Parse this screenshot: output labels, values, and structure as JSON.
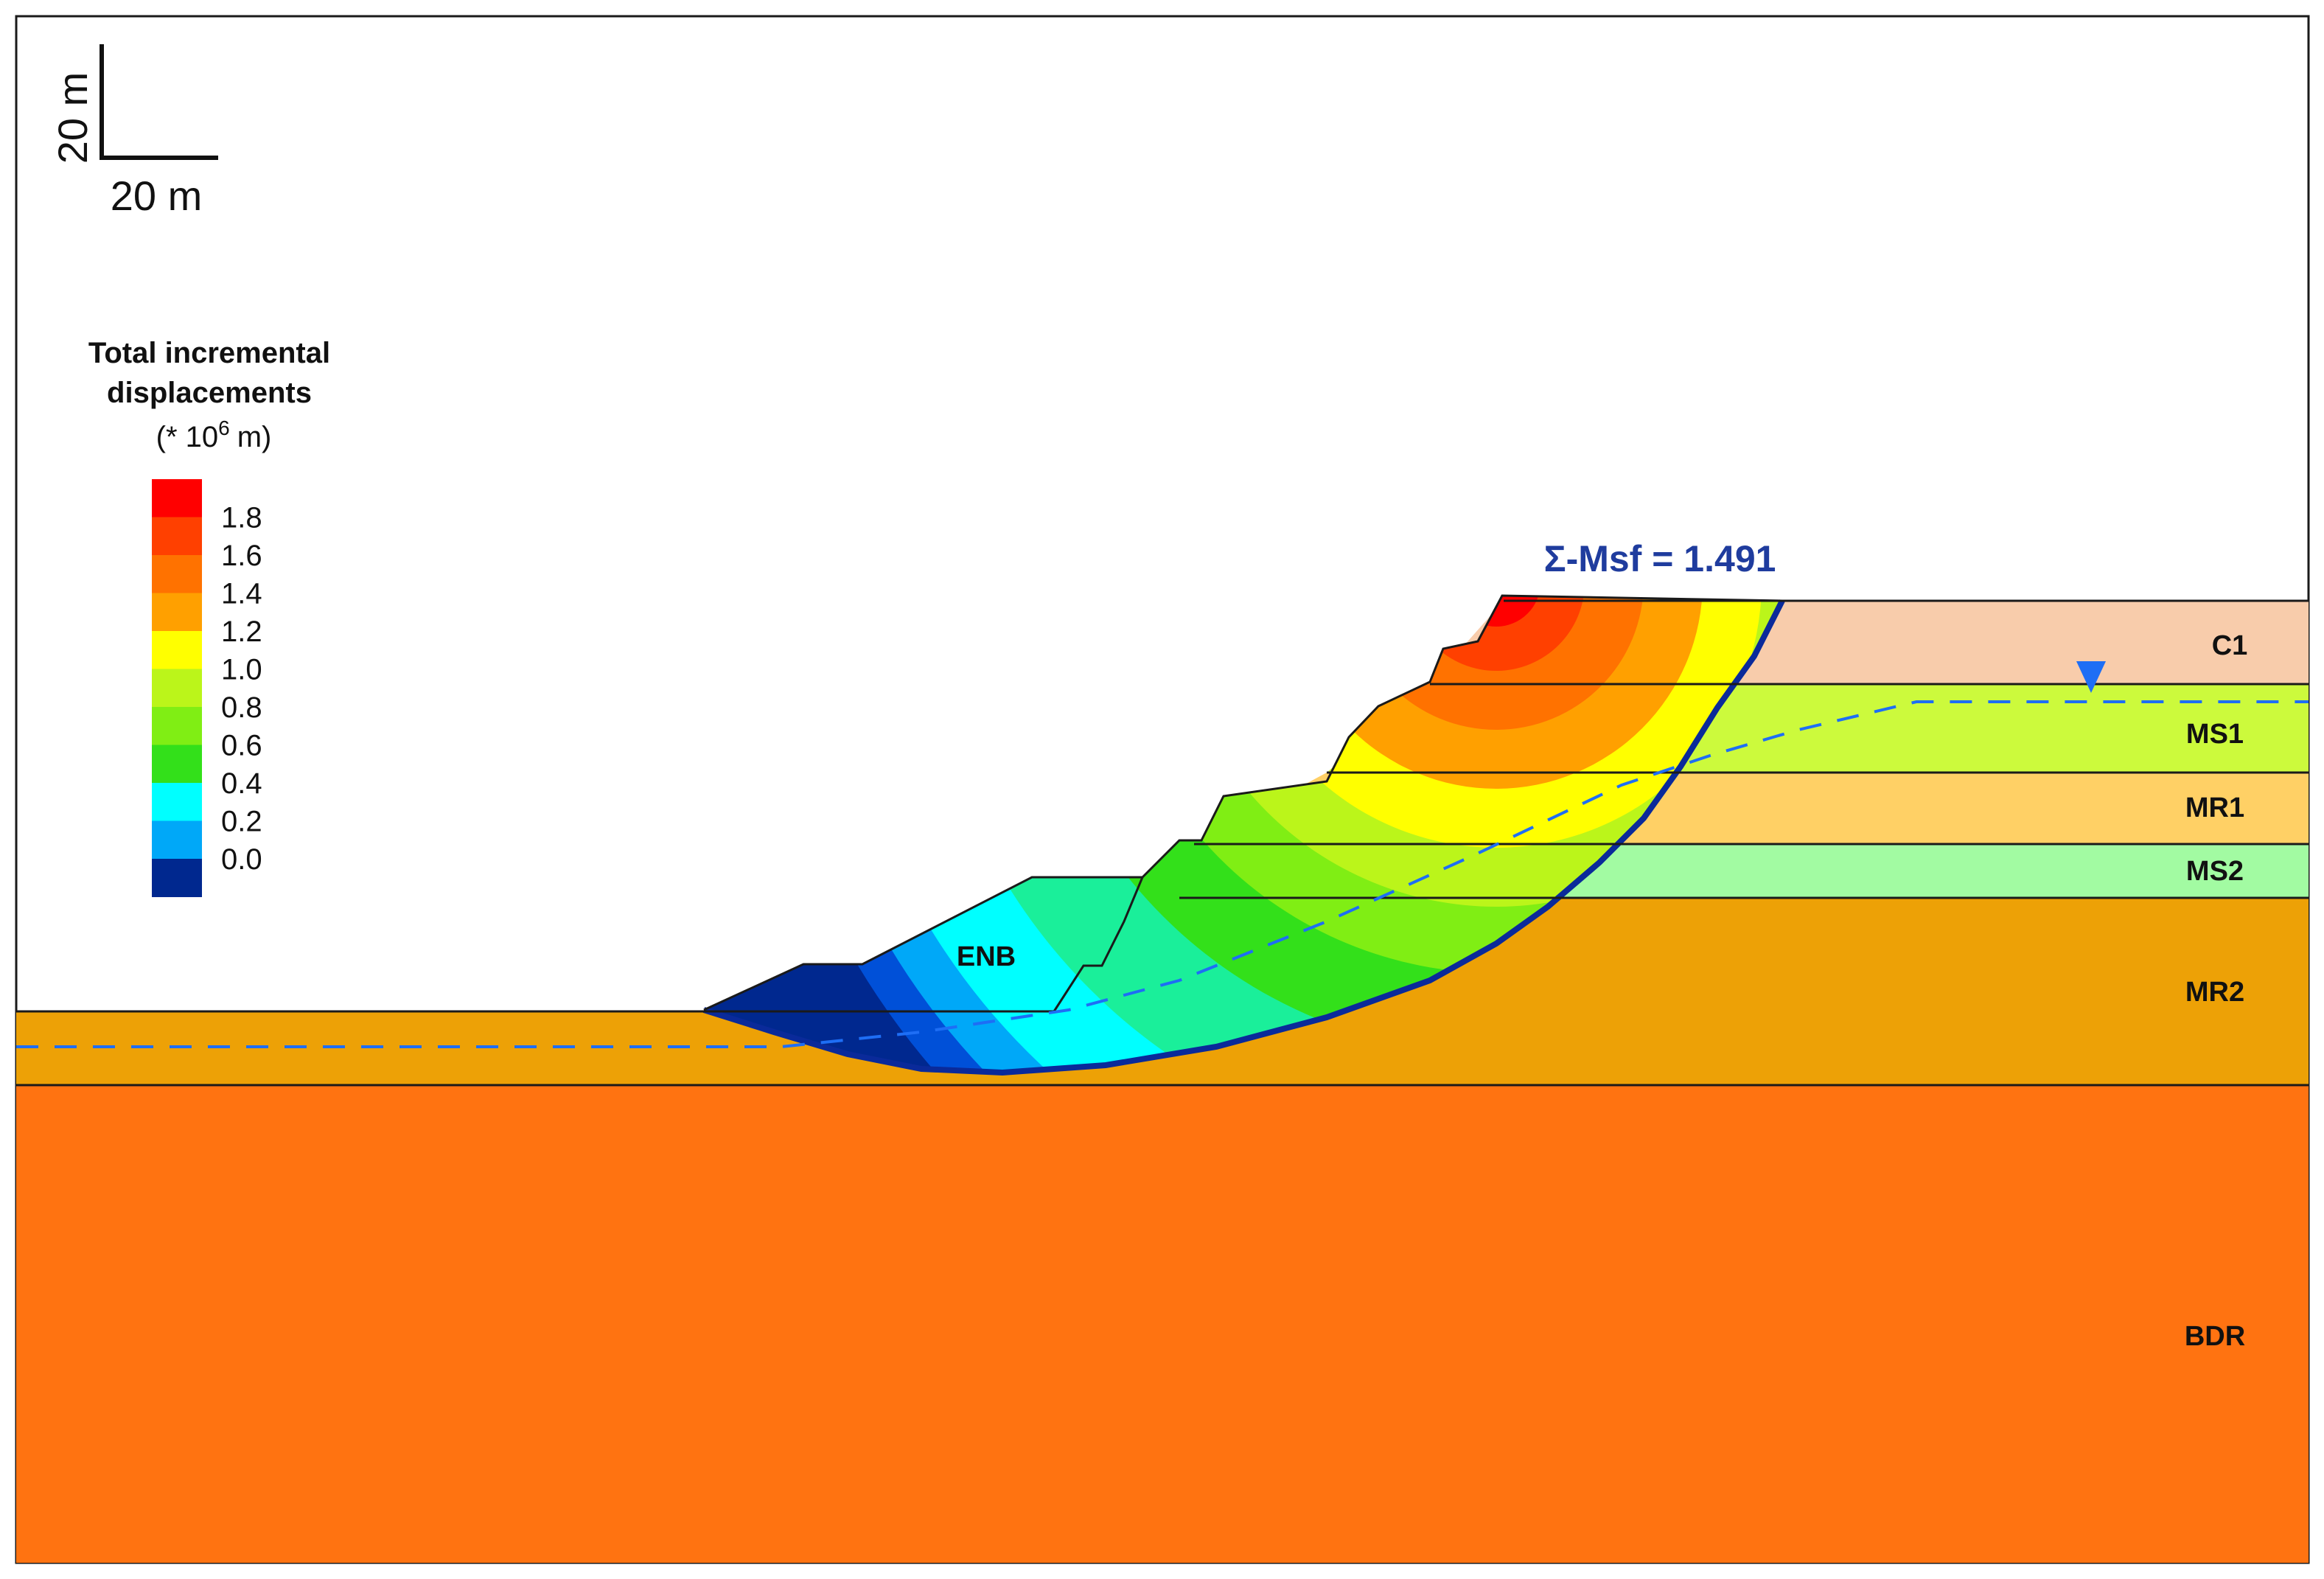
{
  "scale_bar": {
    "vertical_label": "20 m",
    "horizontal_label": "20 m"
  },
  "legend": {
    "title_line1": "Total incremental",
    "title_line2": "displacements",
    "unit_prefix": "(* 10",
    "unit_exponent": "6",
    "unit_suffix": "m)",
    "ticks": [
      "1.8",
      "1.6",
      "1.4",
      "1.2",
      "1.0",
      "0.8",
      "0.6",
      "0.4",
      "0.2",
      "0.0"
    ],
    "colors": [
      "#ff0000",
      "#ff4000",
      "#ff7200",
      "#ffa000",
      "#ffff00",
      "#bbf51a",
      "#80ee14",
      "#33e01a",
      "#00ffff",
      "#00a8f8",
      "#00288f"
    ]
  },
  "safety_factor_label": "Σ-Msf = 1.491",
  "layers": {
    "c1": "C1",
    "ms1": "MS1",
    "mr1": "MR1",
    "ms2": "MS2",
    "mr2": "MR2",
    "bdr": "BDR",
    "enb": "ENB"
  },
  "layer_colors": {
    "c1": "#f8ccab",
    "ms1": "#ccfa3c",
    "mr1": "#ffd065",
    "ms2": "#a2fba2",
    "mr2": "#eda106",
    "bdr": "#ff7311"
  },
  "water_table_color": "#1e6ef5"
}
